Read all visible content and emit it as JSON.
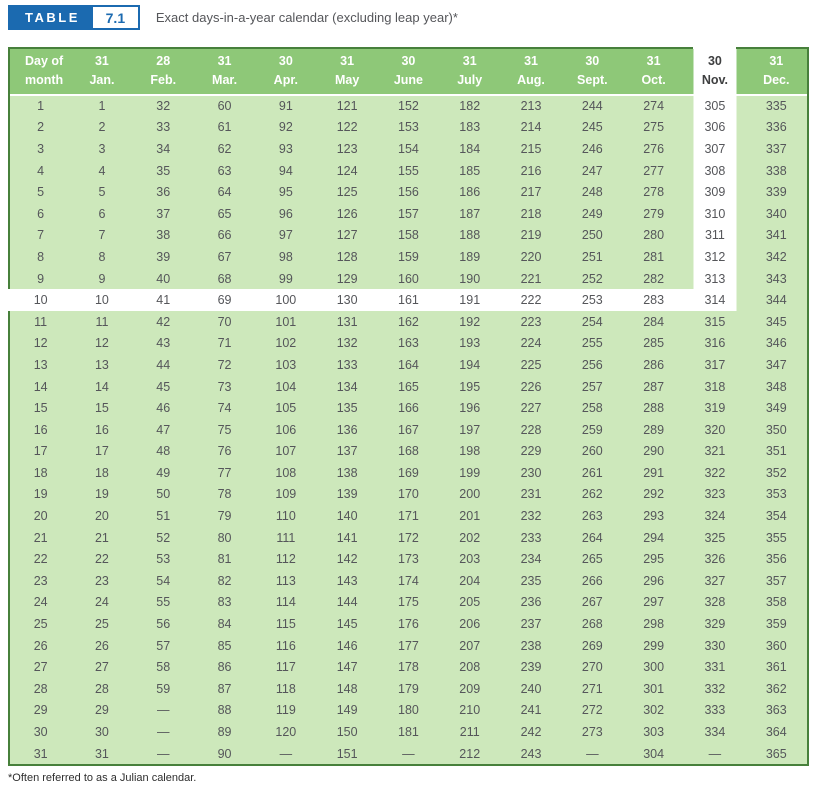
{
  "title": {
    "label": "TABLE",
    "number": "7.1",
    "caption": "Exact days-in-a-year calendar (excluding leap year)*"
  },
  "footnote": "*Often referred to as a Julian calendar.",
  "colors": {
    "accent_blue": "#1b6ab0",
    "header_green": "#8ec878",
    "body_green": "#cde8bb",
    "border_green": "#47803b",
    "text_gray": "#55565a",
    "nov_text": "#3f4041",
    "highlight_white": "#ffffff"
  },
  "header": {
    "day_label_line1": "Day of",
    "day_label_line2": "month",
    "months": [
      {
        "days": "31",
        "label": "Jan."
      },
      {
        "days": "28",
        "label": "Feb."
      },
      {
        "days": "31",
        "label": "Mar."
      },
      {
        "days": "30",
        "label": "Apr."
      },
      {
        "days": "31",
        "label": "May"
      },
      {
        "days": "30",
        "label": "June"
      },
      {
        "days": "31",
        "label": "July"
      },
      {
        "days": "31",
        "label": "Aug."
      },
      {
        "days": "30",
        "label": "Sept."
      },
      {
        "days": "31",
        "label": "Oct."
      },
      {
        "days": "30",
        "label": "Nov."
      },
      {
        "days": "31",
        "label": "Dec."
      }
    ]
  },
  "highlight": {
    "month": "Nov.",
    "month_index": 10,
    "day_of_month": 10
  },
  "rows": [
    {
      "day": "1",
      "values": [
        "1",
        "32",
        "60",
        "91",
        "121",
        "152",
        "182",
        "213",
        "244",
        "274",
        "305",
        "335"
      ]
    },
    {
      "day": "2",
      "values": [
        "2",
        "33",
        "61",
        "92",
        "122",
        "153",
        "183",
        "214",
        "245",
        "275",
        "306",
        "336"
      ]
    },
    {
      "day": "3",
      "values": [
        "3",
        "34",
        "62",
        "93",
        "123",
        "154",
        "184",
        "215",
        "246",
        "276",
        "307",
        "337"
      ]
    },
    {
      "day": "4",
      "values": [
        "4",
        "35",
        "63",
        "94",
        "124",
        "155",
        "185",
        "216",
        "247",
        "277",
        "308",
        "338"
      ]
    },
    {
      "day": "5",
      "values": [
        "5",
        "36",
        "64",
        "95",
        "125",
        "156",
        "186",
        "217",
        "248",
        "278",
        "309",
        "339"
      ]
    },
    {
      "day": "6",
      "values": [
        "6",
        "37",
        "65",
        "96",
        "126",
        "157",
        "187",
        "218",
        "249",
        "279",
        "310",
        "340"
      ]
    },
    {
      "day": "7",
      "values": [
        "7",
        "38",
        "66",
        "97",
        "127",
        "158",
        "188",
        "219",
        "250",
        "280",
        "311",
        "341"
      ]
    },
    {
      "day": "8",
      "values": [
        "8",
        "39",
        "67",
        "98",
        "128",
        "159",
        "189",
        "220",
        "251",
        "281",
        "312",
        "342"
      ]
    },
    {
      "day": "9",
      "values": [
        "9",
        "40",
        "68",
        "99",
        "129",
        "160",
        "190",
        "221",
        "252",
        "282",
        "313",
        "343"
      ]
    },
    {
      "day": "10",
      "values": [
        "10",
        "41",
        "69",
        "100",
        "130",
        "161",
        "191",
        "222",
        "253",
        "283",
        "314",
        "344"
      ]
    },
    {
      "day": "11",
      "values": [
        "11",
        "42",
        "70",
        "101",
        "131",
        "162",
        "192",
        "223",
        "254",
        "284",
        "315",
        "345"
      ]
    },
    {
      "day": "12",
      "values": [
        "12",
        "43",
        "71",
        "102",
        "132",
        "163",
        "193",
        "224",
        "255",
        "285",
        "316",
        "346"
      ]
    },
    {
      "day": "13",
      "values": [
        "13",
        "44",
        "72",
        "103",
        "133",
        "164",
        "194",
        "225",
        "256",
        "286",
        "317",
        "347"
      ]
    },
    {
      "day": "14",
      "values": [
        "14",
        "45",
        "73",
        "104",
        "134",
        "165",
        "195",
        "226",
        "257",
        "287",
        "318",
        "348"
      ]
    },
    {
      "day": "15",
      "values": [
        "15",
        "46",
        "74",
        "105",
        "135",
        "166",
        "196",
        "227",
        "258",
        "288",
        "319",
        "349"
      ]
    },
    {
      "day": "16",
      "values": [
        "16",
        "47",
        "75",
        "106",
        "136",
        "167",
        "197",
        "228",
        "259",
        "289",
        "320",
        "350"
      ]
    },
    {
      "day": "17",
      "values": [
        "17",
        "48",
        "76",
        "107",
        "137",
        "168",
        "198",
        "229",
        "260",
        "290",
        "321",
        "351"
      ]
    },
    {
      "day": "18",
      "values": [
        "18",
        "49",
        "77",
        "108",
        "138",
        "169",
        "199",
        "230",
        "261",
        "291",
        "322",
        "352"
      ]
    },
    {
      "day": "19",
      "values": [
        "19",
        "50",
        "78",
        "109",
        "139",
        "170",
        "200",
        "231",
        "262",
        "292",
        "323",
        "353"
      ]
    },
    {
      "day": "20",
      "values": [
        "20",
        "51",
        "79",
        "110",
        "140",
        "171",
        "201",
        "232",
        "263",
        "293",
        "324",
        "354"
      ]
    },
    {
      "day": "21",
      "values": [
        "21",
        "52",
        "80",
        "111",
        "141",
        "172",
        "202",
        "233",
        "264",
        "294",
        "325",
        "355"
      ]
    },
    {
      "day": "22",
      "values": [
        "22",
        "53",
        "81",
        "112",
        "142",
        "173",
        "203",
        "234",
        "265",
        "295",
        "326",
        "356"
      ]
    },
    {
      "day": "23",
      "values": [
        "23",
        "54",
        "82",
        "113",
        "143",
        "174",
        "204",
        "235",
        "266",
        "296",
        "327",
        "357"
      ]
    },
    {
      "day": "24",
      "values": [
        "24",
        "55",
        "83",
        "114",
        "144",
        "175",
        "205",
        "236",
        "267",
        "297",
        "328",
        "358"
      ]
    },
    {
      "day": "25",
      "values": [
        "25",
        "56",
        "84",
        "115",
        "145",
        "176",
        "206",
        "237",
        "268",
        "298",
        "329",
        "359"
      ]
    },
    {
      "day": "26",
      "values": [
        "26",
        "57",
        "85",
        "116",
        "146",
        "177",
        "207",
        "238",
        "269",
        "299",
        "330",
        "360"
      ]
    },
    {
      "day": "27",
      "values": [
        "27",
        "58",
        "86",
        "117",
        "147",
        "178",
        "208",
        "239",
        "270",
        "300",
        "331",
        "361"
      ]
    },
    {
      "day": "28",
      "values": [
        "28",
        "59",
        "87",
        "118",
        "148",
        "179",
        "209",
        "240",
        "271",
        "301",
        "332",
        "362"
      ]
    },
    {
      "day": "29",
      "values": [
        "29",
        "—",
        "88",
        "119",
        "149",
        "180",
        "210",
        "241",
        "272",
        "302",
        "333",
        "363"
      ]
    },
    {
      "day": "30",
      "values": [
        "30",
        "—",
        "89",
        "120",
        "150",
        "181",
        "211",
        "242",
        "273",
        "303",
        "334",
        "364"
      ]
    },
    {
      "day": "31",
      "values": [
        "31",
        "—",
        "90",
        "—",
        "151",
        "—",
        "212",
        "243",
        "—",
        "304",
        "—",
        "365"
      ]
    }
  ]
}
